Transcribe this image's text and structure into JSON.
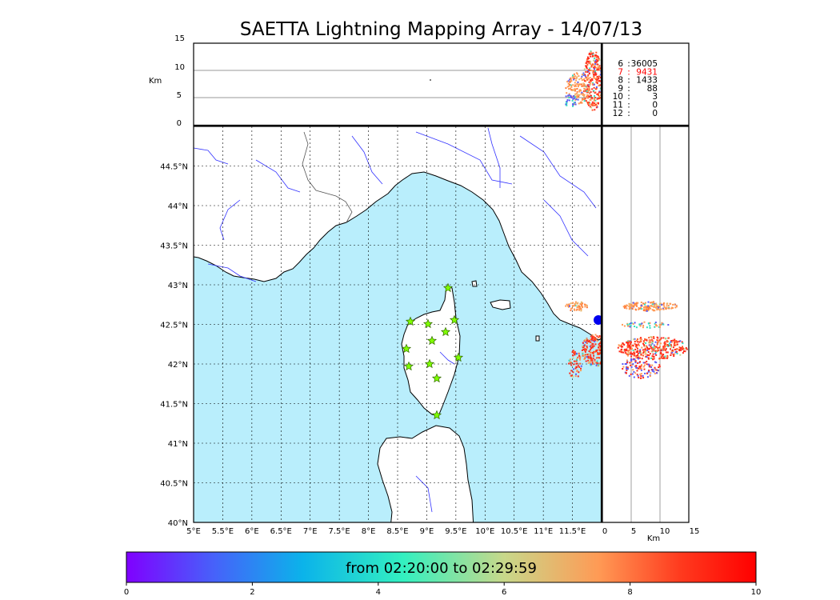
{
  "title": "SAETTA Lightning Mapping Array - 14/07/13",
  "altitude_panel": {
    "axis_label": "Km",
    "y_ticks": [
      "15",
      "10",
      "5",
      "0"
    ]
  },
  "side_panel": {
    "axis_label": "Km",
    "x_ticks": [
      "0",
      "5",
      "10",
      "15"
    ]
  },
  "stations_count_table": [
    {
      "stations": "6",
      "count": "36005",
      "color": "#000000"
    },
    {
      "stations": "7",
      "count": "9431",
      "color": "#ff0000"
    },
    {
      "stations": "8",
      "count": "1433",
      "color": "#000000"
    },
    {
      "stations": "9",
      "count": "88",
      "color": "#000000"
    },
    {
      "stations": "10",
      "count": "3",
      "color": "#000000"
    },
    {
      "stations": "11",
      "count": "0",
      "color": "#000000"
    },
    {
      "stations": "12",
      "count": "0",
      "color": "#000000"
    }
  ],
  "map": {
    "lon_labels": [
      "5°E",
      "5.5°E",
      "6°E",
      "6.5°E",
      "7°E",
      "7.5°E",
      "8°E",
      "8.5°E",
      "9°E",
      "9.5°E",
      "10°E",
      "10.5°E",
      "11°E",
      "11.5°E"
    ],
    "lat_labels": [
      "40°N",
      "40.5°N",
      "41°N",
      "41.5°N",
      "42°N",
      "42.5°N",
      "43°N",
      "43.5°N",
      "44°N",
      "44.5°N"
    ],
    "lon_range": [
      5,
      12
    ],
    "lat_range": [
      40,
      45
    ],
    "sea_color": "#b9eefc",
    "land_color": "#ffffff",
    "river_color": "#3333ff",
    "station_color": "#7fff00"
  },
  "colorbar": {
    "label": "from 02:20:00 to 02:29:59",
    "ticks": [
      "0",
      "2",
      "4",
      "6",
      "8",
      "10"
    ],
    "colors": [
      "#8000ff",
      "#4662fa",
      "#0bb3ea",
      "#33f0c0",
      "#c8d88a",
      "#ff9a55",
      "#ff3a1e",
      "#ff0000"
    ]
  }
}
